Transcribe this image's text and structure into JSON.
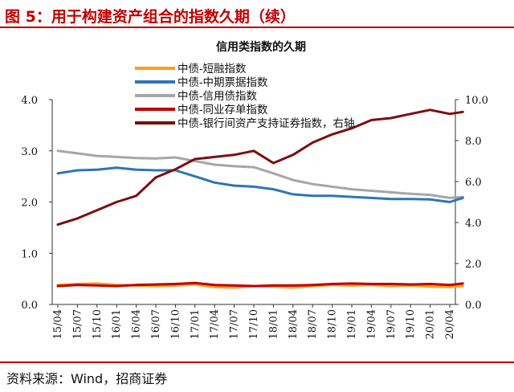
{
  "header": {
    "figure_title": "图 5：用于构建资产组合的指数久期（续）"
  },
  "footer": {
    "source": "资料来源：Wind，招商证券"
  },
  "colors": {
    "brand": "#c00000",
    "s1": "#f5a21b",
    "s2": "#2e75b6",
    "s3": "#a6a6a6",
    "s4": "#c00000",
    "s5": "#7b0f0f"
  },
  "chart_data": {
    "type": "line",
    "title": "信用类指数的久期",
    "xlabel": "",
    "ylabel_left": "",
    "ylabel_right": "",
    "x_ticks": [
      "15/04",
      "15/07",
      "15/10",
      "16/01",
      "16/04",
      "16/07",
      "16/10",
      "17/01",
      "17/04",
      "17/07",
      "17/10",
      "18/01",
      "18/04",
      "18/07",
      "18/10",
      "19/01",
      "19/04",
      "19/07",
      "19/10",
      "20/01",
      "20/04"
    ],
    "y_left": {
      "ticks": [
        "0.0",
        "1.0",
        "2.0",
        "3.0",
        "4.0"
      ],
      "range": [
        0,
        4
      ]
    },
    "y_right": {
      "ticks": [
        "0.0",
        "2.0",
        "4.0",
        "6.0",
        "8.0",
        "10.0"
      ],
      "range": [
        0,
        10
      ]
    },
    "legend_position": "top",
    "series": [
      {
        "name": "中债-短融指数",
        "axis": "left",
        "x": [
          "15/04",
          "15/07",
          "15/10",
          "16/01",
          "16/04",
          "16/07",
          "16/10",
          "17/01",
          "17/04",
          "17/07",
          "17/10",
          "18/01",
          "18/04",
          "18/07",
          "18/10",
          "19/01",
          "19/04",
          "19/07",
          "19/10",
          "20/01",
          "20/04",
          "20/06"
        ],
        "values": [
          0.38,
          0.4,
          0.41,
          0.38,
          0.37,
          0.36,
          0.37,
          0.39,
          0.34,
          0.33,
          0.36,
          0.35,
          0.33,
          0.36,
          0.38,
          0.37,
          0.38,
          0.36,
          0.37,
          0.35,
          0.34,
          0.36
        ]
      },
      {
        "name": "中债-中期票据指数",
        "axis": "left",
        "x": [
          "15/04",
          "15/07",
          "15/10",
          "16/01",
          "16/04",
          "16/07",
          "16/10",
          "17/01",
          "17/04",
          "17/07",
          "17/10",
          "18/01",
          "18/04",
          "18/07",
          "18/10",
          "19/01",
          "19/04",
          "19/07",
          "19/10",
          "20/01",
          "20/04",
          "20/06"
        ],
        "values": [
          2.56,
          2.62,
          2.63,
          2.67,
          2.63,
          2.62,
          2.62,
          2.5,
          2.38,
          2.32,
          2.3,
          2.25,
          2.15,
          2.12,
          2.12,
          2.1,
          2.08,
          2.06,
          2.06,
          2.05,
          2.0,
          2.08
        ]
      },
      {
        "name": "中债-信用债指数",
        "axis": "left",
        "x": [
          "15/04",
          "15/07",
          "15/10",
          "16/01",
          "16/04",
          "16/07",
          "16/10",
          "17/01",
          "17/04",
          "17/07",
          "17/10",
          "18/01",
          "18/04",
          "18/07",
          "18/10",
          "19/01",
          "19/04",
          "19/07",
          "19/10",
          "20/01",
          "20/04",
          "20/06"
        ],
        "values": [
          3.0,
          2.95,
          2.9,
          2.88,
          2.86,
          2.85,
          2.87,
          2.8,
          2.73,
          2.7,
          2.68,
          2.56,
          2.43,
          2.35,
          2.3,
          2.25,
          2.22,
          2.19,
          2.16,
          2.14,
          2.08,
          2.1
        ]
      },
      {
        "name": "中债-同业存单指数",
        "axis": "left",
        "x": [
          "15/04",
          "15/07",
          "15/10",
          "16/01",
          "16/04",
          "16/07",
          "16/10",
          "17/01",
          "17/04",
          "17/07",
          "17/10",
          "18/01",
          "18/04",
          "18/07",
          "18/10",
          "19/01",
          "19/04",
          "19/07",
          "19/10",
          "20/01",
          "20/04",
          "20/06"
        ],
        "values": [
          0.36,
          0.38,
          0.37,
          0.36,
          0.38,
          0.39,
          0.4,
          0.42,
          0.38,
          0.37,
          0.36,
          0.37,
          0.37,
          0.38,
          0.4,
          0.41,
          0.4,
          0.4,
          0.39,
          0.4,
          0.38,
          0.41
        ]
      },
      {
        "name": "中债-银行间资产支持证券指数，右轴",
        "axis": "right",
        "x": [
          "15/04",
          "15/07",
          "15/10",
          "16/01",
          "16/04",
          "16/07",
          "16/10",
          "17/01",
          "17/04",
          "17/07",
          "17/10",
          "18/01",
          "18/04",
          "18/07",
          "18/10",
          "19/01",
          "19/04",
          "19/07",
          "19/10",
          "20/01",
          "20/04",
          "20/06"
        ],
        "values": [
          3.9,
          4.2,
          4.6,
          5.0,
          5.3,
          6.2,
          6.6,
          7.1,
          7.2,
          7.3,
          7.5,
          6.9,
          7.3,
          7.9,
          8.3,
          8.6,
          9.0,
          9.1,
          9.3,
          9.5,
          9.3,
          9.4
        ]
      }
    ]
  }
}
